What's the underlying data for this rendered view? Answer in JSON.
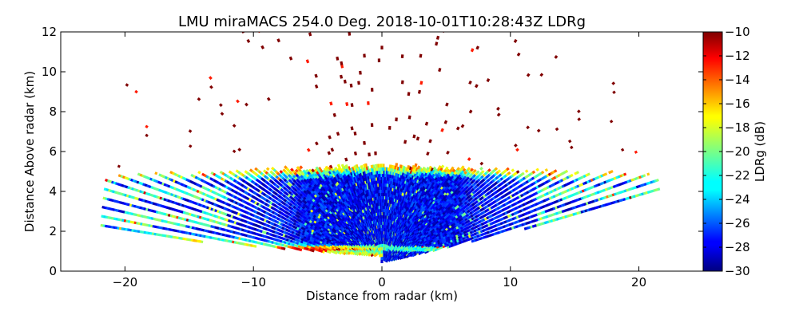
{
  "chart_data": {
    "type": "heatmap",
    "title": "LMU miraMACS 254.0 Deg. 2018-10-01T10:28:43Z  LDRg",
    "xlabel": "Distance from radar (km)",
    "ylabel": "Distance Above radar  (km)",
    "xlim": [
      -25,
      25
    ],
    "ylim": [
      0,
      12
    ],
    "xticks": [
      "−20",
      "−10",
      "0",
      "10",
      "20"
    ],
    "xtick_values": [
      -20,
      -10,
      0,
      10,
      20
    ],
    "yticks": [
      "0",
      "2",
      "4",
      "6",
      "8",
      "10",
      "12"
    ],
    "ytick_values": [
      0,
      2,
      4,
      6,
      8,
      10,
      12
    ],
    "colorbar": {
      "label": "LDRg (dB)",
      "range": [
        -30,
        -10
      ],
      "ticks": [
        "−30",
        "−28",
        "−26",
        "−24",
        "−22",
        "−20",
        "−18",
        "−16",
        "−14",
        "−12",
        "−10"
      ],
      "tick_values": [
        -30,
        -28,
        -26,
        -24,
        -22,
        -20,
        -18,
        -16,
        -14,
        -12,
        -10
      ],
      "colormap": "jet"
    },
    "scan": {
      "azimuth_deg": 254.0,
      "max_range_km": 22,
      "cloud_layer": {
        "base_km": 0.5,
        "top_km": 5.2,
        "left_base_km": 2.0,
        "right_base_km": 3.9
      },
      "sparse_noise_ldr_db": -10,
      "noise_top_km": 12
    }
  }
}
